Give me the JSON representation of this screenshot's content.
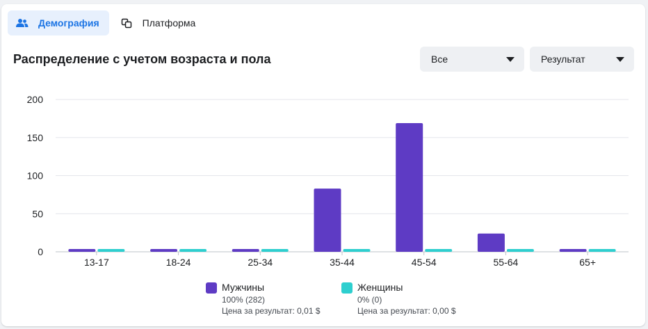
{
  "tabs": [
    {
      "label": "Демография",
      "icon": "people-icon",
      "active": true
    },
    {
      "label": "Платформа",
      "icon": "platform-icon",
      "active": false
    }
  ],
  "section_title": "Распределение с учетом возраста и пола",
  "filters": {
    "audience": "Все",
    "metric": "Результат"
  },
  "colors": {
    "accent": "#1b74e4",
    "men": "#5e3bc4",
    "women": "#2ecfcf"
  },
  "legend": [
    {
      "name": "Мужчины",
      "share": "100% (282)",
      "cost": "Цена за результат: 0,01 $"
    },
    {
      "name": "Женщины",
      "share": "0% (0)",
      "cost": "Цена за результат: 0,00 $"
    }
  ],
  "chart_data": {
    "type": "bar",
    "categories": [
      "13-17",
      "18-24",
      "25-34",
      "35-44",
      "45-54",
      "55-64",
      "65+"
    ],
    "series": [
      {
        "name": "Мужчины",
        "values": [
          1,
          1,
          3,
          83,
          169,
          24,
          1
        ]
      },
      {
        "name": "Женщины",
        "values": [
          0,
          0,
          0,
          0,
          0,
          0,
          0
        ]
      }
    ],
    "yticks": [
      0,
      50,
      100,
      150,
      200
    ],
    "ylim": [
      0,
      200
    ],
    "grid": true,
    "legend_position": "bottom"
  }
}
